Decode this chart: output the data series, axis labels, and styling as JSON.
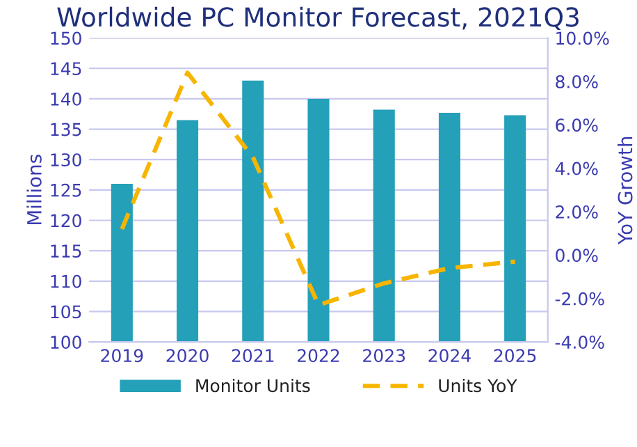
{
  "chart_data": {
    "type": "bar",
    "title": "Worldwide PC Monitor Forecast, 2021Q3",
    "categories": [
      "2019",
      "2020",
      "2021",
      "2022",
      "2023",
      "2024",
      "2025"
    ],
    "series": [
      {
        "name": "Monitor Units",
        "color": "#24a0b9",
        "values": [
          126,
          136.5,
          143,
          140,
          138.2,
          137.7,
          137.3
        ]
      },
      {
        "name": "Units YoY",
        "type": "line",
        "axis": "y2",
        "color": "#f7b500",
        "line_style": "dashed",
        "values": [
          1.2,
          8.4,
          4.5,
          -2.3,
          -1.3,
          -0.6,
          -0.3
        ]
      }
    ],
    "ylabel": "Millions",
    "y2label": "YoY Growth",
    "ylim": [
      100,
      150
    ],
    "yticks": [
      100,
      105,
      110,
      115,
      120,
      125,
      130,
      135,
      140,
      145,
      150
    ],
    "y2lim": [
      -4,
      10
    ],
    "y2ticks": [
      {
        "value": -4,
        "label": "-4.0%"
      },
      {
        "value": -2,
        "label": "-2.0%"
      },
      {
        "value": 0,
        "label": "0.0%"
      },
      {
        "value": 2,
        "label": "2.0%"
      },
      {
        "value": 4,
        "label": "4.0%"
      },
      {
        "value": 6,
        "label": "6.0%"
      },
      {
        "value": 8,
        "label": "8.0%"
      },
      {
        "value": 10,
        "label": "10.0%"
      }
    ],
    "grid": "y",
    "legend": "bottom"
  }
}
